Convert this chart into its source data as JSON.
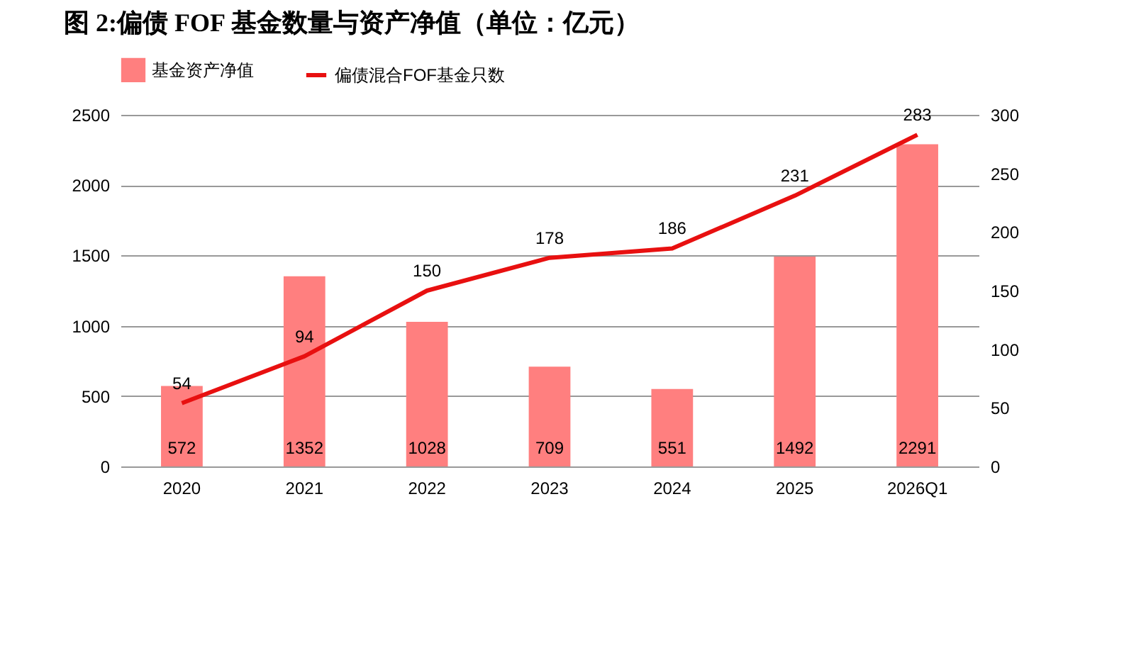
{
  "chart_data": {
    "type": "bar",
    "title": "图 2:偏债 FOF 基金数量与资产净值（单位：亿元）",
    "categories": [
      "2020",
      "2021",
      "2022",
      "2023",
      "2024",
      "2025",
      "2026Q1"
    ],
    "series": [
      {
        "name": "基金资产净值",
        "color": "#ff7f7f",
        "values": [
          572,
          1352,
          1028,
          709,
          551,
          1492,
          2291
        ]
      },
      {
        "name": "偏债混合FOF基金只数",
        "type": "line",
        "axis": "y2",
        "color": "#e81010",
        "values": [
          54,
          94,
          150,
          178,
          186,
          231,
          283
        ]
      }
    ],
    "ylim": [
      0,
      2500
    ],
    "yticks": [
      0,
      500,
      1000,
      1500,
      2000,
      2500
    ],
    "y2lim": [
      0,
      300
    ],
    "y2ticks": [
      0,
      50,
      100,
      150,
      200,
      250,
      300
    ],
    "grid": "y",
    "legend": "top",
    "data_labels": true,
    "marker": "none",
    "line_style": "solid"
  }
}
